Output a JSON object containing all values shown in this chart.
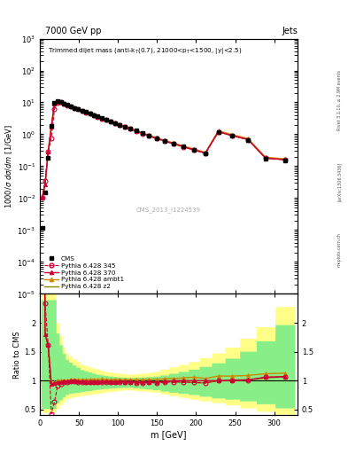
{
  "title_main": "7000 GeV pp",
  "title_right": "Jets",
  "xlabel": "m [GeV]",
  "ylabel_main": "1000/σ dσ/dm [1/GeV]",
  "ylabel_ratio": "Ratio to CMS",
  "watermark": "CMS_2013_I1224539",
  "rivet_text": "Rivet 3.1.10, ≥ 2.9M events",
  "arxiv_text": "[arXiv:1306.3436]",
  "mcplots_text": "mcplots.cern.ch",
  "cms_x": [
    3.0,
    6.5,
    10.5,
    14.5,
    18.5,
    22.5,
    26.5,
    30.5,
    34.5,
    39.0,
    44.0,
    49.0,
    54.0,
    59.0,
    64.0,
    69.0,
    74.0,
    79.0,
    84.5,
    90.0,
    96.0,
    102.0,
    108.5,
    115.5,
    123.0,
    131.0,
    139.5,
    149.0,
    159.5,
    171.0,
    183.5,
    197.0,
    212.0,
    228.5,
    246.5,
    266.5,
    289.0,
    314.0
  ],
  "cms_y": [
    0.0012,
    0.015,
    0.18,
    1.8,
    9.5,
    10.8,
    10.5,
    9.2,
    8.3,
    7.4,
    6.7,
    6.1,
    5.5,
    5.0,
    4.5,
    4.0,
    3.6,
    3.2,
    2.85,
    2.55,
    2.25,
    2.0,
    1.72,
    1.52,
    1.3,
    1.1,
    0.92,
    0.77,
    0.63,
    0.52,
    0.41,
    0.33,
    0.26,
    1.2,
    0.9,
    0.68,
    0.17,
    0.15
  ],
  "p345_x": [
    3.0,
    6.5,
    10.5,
    14.5,
    18.5,
    22.5,
    26.5,
    30.5,
    34.5,
    39.0,
    44.0,
    49.0,
    54.0,
    59.0,
    64.0,
    69.0,
    74.0,
    79.0,
    84.5,
    90.0,
    96.0,
    102.0,
    108.5,
    115.5,
    123.0,
    131.0,
    139.5,
    149.0,
    159.5,
    171.0,
    183.5,
    197.0,
    212.0,
    228.5,
    246.5,
    266.5,
    289.0,
    314.0
  ],
  "p345_y": [
    0.01,
    0.035,
    0.29,
    0.77,
    6.0,
    9.85,
    10.0,
    9.0,
    8.1,
    7.3,
    6.6,
    6.0,
    5.4,
    4.9,
    4.4,
    3.9,
    3.5,
    3.15,
    2.8,
    2.5,
    2.2,
    1.95,
    1.67,
    1.48,
    1.25,
    1.05,
    0.89,
    0.74,
    0.61,
    0.51,
    0.4,
    0.32,
    0.25,
    1.2,
    0.9,
    0.68,
    0.18,
    0.16
  ],
  "p370_x": [
    3.0,
    6.5,
    10.5,
    14.5,
    18.5,
    22.5,
    26.5,
    30.5,
    34.5,
    39.0,
    44.0,
    49.0,
    54.0,
    59.0,
    64.0,
    69.0,
    74.0,
    79.0,
    84.5,
    90.0,
    96.0,
    102.0,
    108.5,
    115.5,
    123.0,
    131.0,
    139.5,
    149.0,
    159.5,
    171.0,
    183.5,
    197.0,
    212.0,
    228.5,
    246.5,
    266.5,
    289.0,
    314.0
  ],
  "p370_y": [
    0.011,
    0.027,
    0.29,
    1.7,
    9.1,
    10.5,
    10.3,
    9.1,
    8.2,
    7.3,
    6.6,
    6.0,
    5.4,
    4.9,
    4.4,
    3.9,
    3.5,
    3.15,
    2.8,
    2.5,
    2.2,
    1.97,
    1.68,
    1.49,
    1.27,
    1.07,
    0.9,
    0.75,
    0.62,
    0.51,
    0.41,
    0.33,
    0.26,
    1.2,
    0.91,
    0.69,
    0.18,
    0.16
  ],
  "pambt_x": [
    3.0,
    6.5,
    10.5,
    14.5,
    18.5,
    22.5,
    26.5,
    30.5,
    34.5,
    39.0,
    44.0,
    49.0,
    54.0,
    59.0,
    64.0,
    69.0,
    74.0,
    79.0,
    84.5,
    90.0,
    96.0,
    102.0,
    108.5,
    115.5,
    123.0,
    131.0,
    139.5,
    149.0,
    159.5,
    171.0,
    183.5,
    197.0,
    212.0,
    228.5,
    246.5,
    266.5,
    289.0,
    314.0
  ],
  "pambt_y": [
    0.011,
    0.027,
    0.29,
    1.7,
    9.2,
    10.8,
    10.6,
    9.2,
    8.3,
    7.5,
    6.8,
    6.2,
    5.6,
    5.1,
    4.6,
    4.1,
    3.65,
    3.3,
    2.9,
    2.6,
    2.3,
    2.05,
    1.75,
    1.55,
    1.32,
    1.12,
    0.94,
    0.79,
    0.65,
    0.54,
    0.43,
    0.35,
    0.27,
    1.3,
    0.97,
    0.74,
    0.19,
    0.17
  ],
  "pz2_x": [
    3.0,
    6.5,
    10.5,
    14.5,
    18.5,
    22.5,
    26.5,
    30.5,
    34.5,
    39.0,
    44.0,
    49.0,
    54.0,
    59.0,
    64.0,
    69.0,
    74.0,
    79.0,
    84.5,
    90.0,
    96.0,
    102.0,
    108.5,
    115.5,
    123.0,
    131.0,
    139.5,
    149.0,
    159.5,
    171.0,
    183.5,
    197.0,
    212.0,
    228.5,
    246.5,
    266.5,
    289.0,
    314.0
  ],
  "pz2_y": [
    0.011,
    0.027,
    0.29,
    1.7,
    9.1,
    10.5,
    10.4,
    9.1,
    8.2,
    7.4,
    6.7,
    6.1,
    5.5,
    5.0,
    4.5,
    4.0,
    3.55,
    3.15,
    2.82,
    2.52,
    2.22,
    1.98,
    1.69,
    1.49,
    1.27,
    1.07,
    0.9,
    0.75,
    0.62,
    0.51,
    0.41,
    0.33,
    0.26,
    1.2,
    0.91,
    0.69,
    0.18,
    0.16
  ],
  "ratio_x": [
    3.0,
    6.5,
    10.5,
    14.5,
    18.5,
    22.5,
    26.5,
    30.5,
    34.5,
    39.0,
    44.0,
    49.0,
    54.0,
    59.0,
    64.0,
    69.0,
    74.0,
    79.0,
    84.5,
    90.0,
    96.0,
    102.0,
    108.5,
    115.5,
    123.0,
    131.0,
    139.5,
    149.0,
    159.5,
    171.0,
    183.5,
    197.0,
    212.0,
    228.5,
    246.5,
    266.5,
    289.0,
    314.0
  ],
  "r345_y": [
    8.3,
    2.33,
    1.61,
    0.43,
    0.63,
    0.91,
    0.95,
    0.98,
    0.98,
    0.99,
    0.99,
    0.98,
    0.98,
    0.98,
    0.98,
    0.98,
    0.97,
    0.98,
    0.98,
    0.98,
    0.98,
    0.975,
    0.97,
    0.97,
    0.96,
    0.955,
    0.97,
    0.96,
    0.97,
    0.98,
    0.975,
    0.97,
    0.96,
    1.0,
    1.0,
    1.0,
    1.06,
    1.07
  ],
  "r370_y": [
    9.2,
    1.8,
    1.61,
    0.94,
    0.96,
    0.97,
    0.98,
    0.99,
    0.99,
    0.99,
    0.985,
    0.984,
    0.982,
    0.98,
    0.978,
    0.975,
    0.972,
    0.984,
    0.982,
    0.98,
    0.977,
    0.985,
    0.977,
    0.98,
    0.977,
    0.973,
    0.978,
    0.974,
    0.984,
    1.0,
    1.0,
    1.0,
    1.0,
    1.0,
    1.01,
    1.015,
    1.06,
    1.07
  ],
  "rambt_y": [
    9.2,
    1.8,
    1.61,
    0.94,
    0.97,
    1.0,
    1.01,
    1.0,
    1.0,
    1.013,
    1.015,
    1.016,
    1.018,
    1.02,
    1.022,
    1.025,
    1.014,
    1.031,
    1.018,
    1.02,
    1.022,
    1.025,
    1.018,
    1.02,
    1.017,
    1.018,
    1.022,
    1.026,
    1.032,
    1.038,
    1.048,
    1.061,
    1.038,
    1.08,
    1.08,
    1.09,
    1.12,
    1.13
  ],
  "rz2_y": [
    9.2,
    1.8,
    1.61,
    0.94,
    0.96,
    0.97,
    0.99,
    0.99,
    0.99,
    1.0,
    1.0,
    1.0,
    1.0,
    1.0,
    1.0,
    1.0,
    1.0,
    0.984,
    1.0,
    1.0,
    1.0,
    0.99,
    0.982,
    0.98,
    0.977,
    0.973,
    0.978,
    0.974,
    0.984,
    0.98,
    0.975,
    0.969,
    0.96,
    1.0,
    1.0,
    1.015,
    1.046,
    1.067
  ],
  "err_yellow_lo": [
    0.45,
    0.45,
    0.45,
    0.45,
    0.45,
    0.52,
    0.58,
    0.63,
    0.68,
    0.7,
    0.72,
    0.73,
    0.74,
    0.75,
    0.76,
    0.77,
    0.78,
    0.79,
    0.8,
    0.81,
    0.82,
    0.83,
    0.84,
    0.84,
    0.83,
    0.82,
    0.81,
    0.8,
    0.77,
    0.74,
    0.71,
    0.68,
    0.65,
    0.62,
    0.58,
    0.53,
    0.47,
    0.42
  ],
  "err_yellow_hi": [
    2.5,
    2.5,
    2.5,
    2.5,
    2.5,
    2.0,
    1.78,
    1.58,
    1.48,
    1.43,
    1.38,
    1.33,
    1.28,
    1.26,
    1.24,
    1.22,
    1.2,
    1.18,
    1.16,
    1.15,
    1.14,
    1.13,
    1.12,
    1.11,
    1.12,
    1.13,
    1.14,
    1.16,
    1.2,
    1.24,
    1.28,
    1.33,
    1.4,
    1.48,
    1.58,
    1.73,
    1.93,
    2.28
  ],
  "err_green_lo": [
    0.52,
    0.52,
    0.52,
    0.52,
    0.52,
    0.62,
    0.67,
    0.72,
    0.76,
    0.78,
    0.79,
    0.8,
    0.81,
    0.82,
    0.83,
    0.84,
    0.85,
    0.86,
    0.865,
    0.87,
    0.875,
    0.88,
    0.885,
    0.885,
    0.875,
    0.865,
    0.855,
    0.845,
    0.82,
    0.8,
    0.78,
    0.76,
    0.73,
    0.7,
    0.68,
    0.65,
    0.6,
    0.53
  ],
  "err_green_hi": [
    2.4,
    2.4,
    2.4,
    2.4,
    2.4,
    1.82,
    1.62,
    1.47,
    1.37,
    1.32,
    1.27,
    1.23,
    1.19,
    1.17,
    1.15,
    1.13,
    1.11,
    1.1,
    1.09,
    1.08,
    1.07,
    1.06,
    1.058,
    1.052,
    1.058,
    1.062,
    1.068,
    1.078,
    1.098,
    1.128,
    1.158,
    1.198,
    1.248,
    1.308,
    1.388,
    1.508,
    1.688,
    1.968
  ],
  "color_345": "#cc0033",
  "color_370": "#cc0033",
  "color_ambt": "#cc8800",
  "color_z2": "#888800",
  "color_cms": "black",
  "color_yellow": "#ffff88",
  "color_green": "#88ee88",
  "ylim_main": [
    1e-05,
    1000.0
  ],
  "ylim_ratio": [
    0.4,
    2.5
  ],
  "xlim": [
    0,
    330
  ]
}
